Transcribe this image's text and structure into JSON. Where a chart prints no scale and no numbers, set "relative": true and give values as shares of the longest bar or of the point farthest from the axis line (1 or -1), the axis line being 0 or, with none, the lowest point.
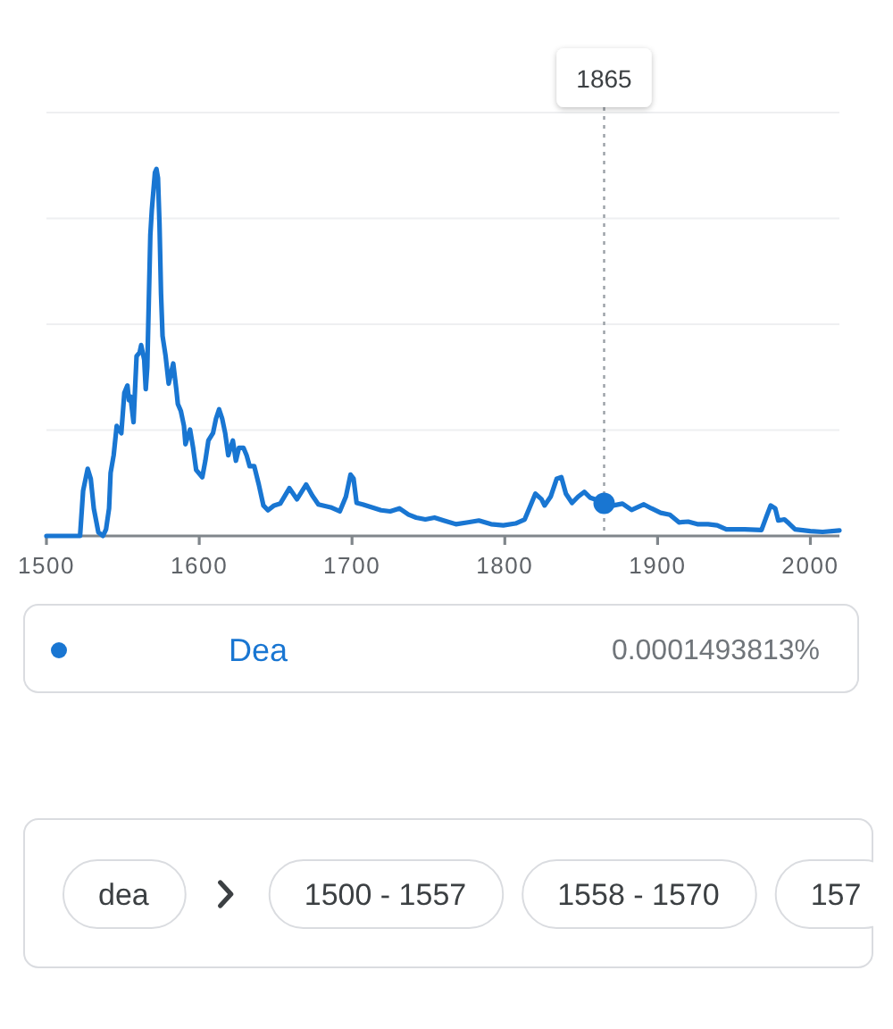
{
  "chart_data": {
    "type": "line",
    "relative": true,
    "xlim": [
      1500,
      2019
    ],
    "xticks": [
      1500,
      1600,
      1700,
      1800,
      1900,
      2000
    ],
    "grid": "y",
    "legend": "bottom",
    "series": [
      {
        "name": "Dea",
        "color": "#1976d2",
        "x": [
          1500,
          1522,
          1524,
          1527,
          1529,
          1531,
          1534,
          1537,
          1539,
          1541,
          1542,
          1544,
          1546,
          1549,
          1551,
          1553,
          1554,
          1555,
          1557,
          1559,
          1561,
          1562,
          1564,
          1565,
          1566,
          1568,
          1569,
          1571,
          1572,
          1573,
          1574,
          1575,
          1576,
          1578,
          1580,
          1583,
          1585,
          1586,
          1588,
          1590,
          1591,
          1594,
          1596,
          1598,
          1602,
          1604,
          1606,
          1609,
          1611,
          1613,
          1615,
          1617,
          1619,
          1622,
          1624,
          1626,
          1629,
          1631,
          1633,
          1636,
          1639,
          1642,
          1645,
          1649,
          1653,
          1659,
          1664,
          1670,
          1674,
          1678,
          1686,
          1692,
          1696,
          1699,
          1701,
          1703,
          1707,
          1713,
          1719,
          1725,
          1731,
          1737,
          1742,
          1748,
          1754,
          1760,
          1768,
          1776,
          1783,
          1791,
          1799,
          1807,
          1813,
          1816,
          1820,
          1824,
          1826,
          1830,
          1834,
          1837,
          1840,
          1844,
          1848,
          1852,
          1856,
          1859,
          1865,
          1871,
          1877,
          1883,
          1891,
          1896,
          1902,
          1908,
          1914,
          1920,
          1926,
          1933,
          1939,
          1945,
          1957,
          1968,
          1971,
          1974,
          1977,
          1979,
          1983,
          1986,
          1990,
          2000,
          2008,
          2019
        ],
        "values": [
          0,
          0,
          0.123,
          0.183,
          0.156,
          0.075,
          0.01,
          0,
          0.018,
          0.075,
          0.172,
          0.22,
          0.3,
          0.28,
          0.39,
          0.41,
          0.37,
          0.38,
          0.31,
          0.49,
          0.5,
          0.52,
          0.48,
          0.4,
          0.46,
          0.82,
          0.89,
          0.99,
          1,
          0.976,
          0.85,
          0.66,
          0.545,
          0.49,
          0.415,
          0.47,
          0.4,
          0.36,
          0.34,
          0.3,
          0.25,
          0.29,
          0.24,
          0.18,
          0.16,
          0.205,
          0.26,
          0.28,
          0.32,
          0.345,
          0.32,
          0.28,
          0.22,
          0.26,
          0.205,
          0.24,
          0.24,
          0.22,
          0.19,
          0.19,
          0.14,
          0.083,
          0.07,
          0.083,
          0.088,
          0.13,
          0.1,
          0.14,
          0.11,
          0.086,
          0.078,
          0.067,
          0.107,
          0.167,
          0.156,
          0.09,
          0.086,
          0.078,
          0.07,
          0.067,
          0.075,
          0.058,
          0.05,
          0.045,
          0.05,
          0.042,
          0.032,
          0.037,
          0.042,
          0.032,
          0.029,
          0.034,
          0.045,
          0.075,
          0.115,
          0.1,
          0.083,
          0.107,
          0.156,
          0.16,
          0.115,
          0.09,
          0.107,
          0.12,
          0.104,
          0.1,
          0.089,
          0.083,
          0.088,
          0.071,
          0.086,
          0.075,
          0.063,
          0.058,
          0.037,
          0.039,
          0.032,
          0.032,
          0.029,
          0.018,
          0.018,
          0.016,
          0.05,
          0.083,
          0.075,
          0.042,
          0.045,
          0.034,
          0.018,
          0.013,
          0.011,
          0.015
        ]
      },
      {
        "type": "scatter",
        "color": "#1976d2",
        "marker": "circle",
        "x": [
          1865
        ],
        "values": [
          0.089
        ]
      }
    ],
    "ref_lines": [
      {
        "axis": "x",
        "value": 1865,
        "label": "1865",
        "line_style": "dotted"
      }
    ],
    "annotations": [
      "0.0001493813%",
      "dea",
      "1500 - 1557",
      "1558 - 1570",
      "157"
    ]
  }
}
